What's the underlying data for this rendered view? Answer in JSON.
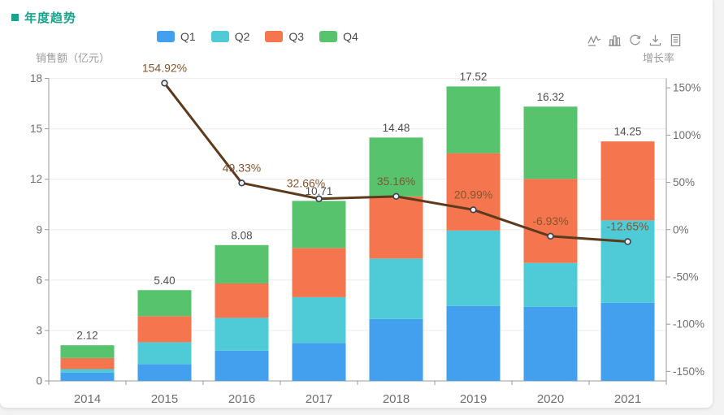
{
  "header": {
    "title": "年度趋势",
    "title_color": "#18a48a"
  },
  "legend": {
    "position": "top-center",
    "items": [
      {
        "label": "Q1",
        "color": "#43a0ee"
      },
      {
        "label": "Q2",
        "color": "#4ecbd7"
      },
      {
        "label": "Q3",
        "color": "#f5764e"
      },
      {
        "label": "Q4",
        "color": "#57c36d"
      }
    ]
  },
  "toolbar": {
    "icons": [
      "line-chart-icon",
      "bar-chart-icon",
      "restore-icon",
      "download-icon",
      "data-view-icon"
    ],
    "icon_color": "#8f8f8f"
  },
  "axes": {
    "left_title": "销售额（亿元）",
    "right_title": "增长率"
  },
  "chart_data": {
    "type": "bar+line",
    "title": "年度趋势",
    "categories": [
      "2014",
      "2015",
      "2016",
      "2017",
      "2018",
      "2019",
      "2020",
      "2021"
    ],
    "series": [
      {
        "name": "Q1",
        "type": "bar",
        "stack": true,
        "color": "#43a0ee",
        "values": [
          0.5,
          1.0,
          1.8,
          2.26,
          3.68,
          4.45,
          4.4,
          4.65
        ]
      },
      {
        "name": "Q2",
        "type": "bar",
        "stack": true,
        "color": "#4ecbd7",
        "values": [
          0.2,
          1.3,
          1.95,
          2.72,
          3.6,
          4.5,
          2.62,
          4.9
        ]
      },
      {
        "name": "Q3",
        "type": "bar",
        "stack": true,
        "color": "#f5764e",
        "values": [
          0.66,
          1.55,
          2.05,
          2.93,
          3.7,
          4.6,
          5.0,
          4.7
        ]
      },
      {
        "name": "Q4",
        "type": "bar",
        "stack": true,
        "color": "#57c36d",
        "values": [
          0.76,
          1.55,
          2.28,
          2.8,
          3.5,
          3.97,
          4.3,
          0
        ]
      },
      {
        "name": "增长率",
        "type": "line",
        "color": "#5e3a1d",
        "values": [
          null,
          154.92,
          49.33,
          32.66,
          35.16,
          20.99,
          -6.93,
          -12.65
        ],
        "point_labels": [
          "",
          "154.92%",
          "49.33%",
          "32.66%",
          "35.16%",
          "20.99%",
          "-6.93%",
          "-12.65%"
        ]
      }
    ],
    "stack_total_labels": [
      "2.12",
      "5.40",
      "8.08",
      "10.71",
      "14.48",
      "17.52",
      "16.32",
      "14.25"
    ],
    "left_axis": {
      "min": 0,
      "max": 18,
      "tick_values": [
        0,
        3,
        6,
        9,
        12,
        15,
        18
      ],
      "tick_labels": [
        "0",
        "3",
        "6",
        "9",
        "12",
        "15",
        "18"
      ],
      "label": "销售额（亿元）"
    },
    "right_axis": {
      "min": -160,
      "max": 160,
      "tick_values": [
        150,
        100,
        50,
        0,
        -50,
        -100,
        -150
      ],
      "tick_labels": [
        "150%",
        "100%",
        "50%",
        "0%",
        "-50%",
        "-100%",
        "-150%"
      ],
      "label": "增长率"
    },
    "grid": "horizontal-only",
    "legend_position": "top",
    "colors": {
      "grid_line": "#ececec",
      "axis_line": "#999999",
      "tick_label": "#6e6e6e",
      "category_label": "#707070",
      "total_label": "#4f4f4f",
      "pct_label": "#84552e",
      "line": "#5e3a1d",
      "point_fill": "#eef2f7",
      "point_stroke": "#39434e"
    }
  }
}
